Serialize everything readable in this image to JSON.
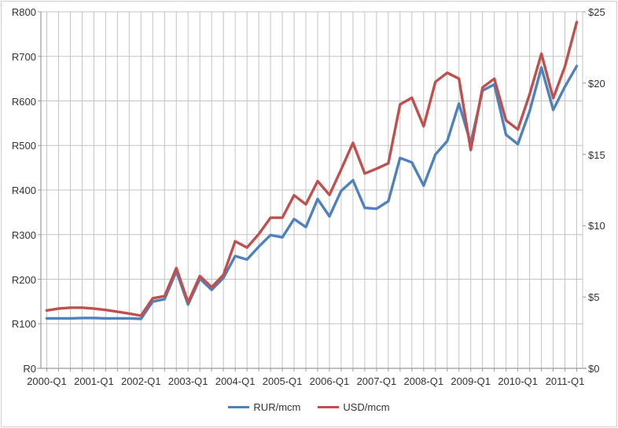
{
  "chart_data": {
    "type": "line",
    "title": "",
    "x": [
      "2000-Q1",
      "2000-Q2",
      "2000-Q3",
      "2000-Q4",
      "2001-Q1",
      "2001-Q2",
      "2001-Q3",
      "2001-Q4",
      "2002-Q1",
      "2002-Q2",
      "2002-Q3",
      "2002-Q4",
      "2003-Q1",
      "2003-Q2",
      "2003-Q3",
      "2003-Q4",
      "2004-Q1",
      "2004-Q2",
      "2004-Q3",
      "2004-Q4",
      "2005-Q1",
      "2005-Q2",
      "2005-Q3",
      "2005-Q4",
      "2006-Q1",
      "2006-Q2",
      "2006-Q3",
      "2006-Q4",
      "2007-Q1",
      "2007-Q2",
      "2007-Q3",
      "2007-Q4",
      "2008-Q1",
      "2008-Q2",
      "2008-Q3",
      "2008-Q4",
      "2009-Q1",
      "2009-Q2",
      "2009-Q3",
      "2009-Q4",
      "2010-Q1",
      "2010-Q2",
      "2010-Q3",
      "2010-Q4",
      "2011-Q1",
      "2011-Q2"
    ],
    "x_axis_labels": [
      "2000-Q1",
      "2001-Q1",
      "2002-Q1",
      "2003-Q1",
      "2004-Q1",
      "2005-Q1",
      "2006-Q1",
      "2007-Q1",
      "2008-Q1",
      "2009-Q1",
      "2010-Q1",
      "2011-Q1"
    ],
    "series": [
      {
        "name": "RUR/mcm",
        "color": "#4F81BD",
        "axis": "left",
        "values": [
          112,
          112,
          112,
          113,
          113,
          112,
          112,
          112,
          111,
          150,
          155,
          218,
          143,
          201,
          176,
          203,
          252,
          244,
          273,
          299,
          294,
          335,
          317,
          380,
          341,
          398,
          422,
          360,
          358,
          375,
          472,
          462,
          410,
          480,
          510,
          594,
          505,
          623,
          637,
          524,
          503,
          577,
          675,
          580,
          632,
          678
        ]
      },
      {
        "name": "USD/mcm",
        "color": "#C0504D",
        "axis": "right",
        "values": [
          4.06,
          4.19,
          4.25,
          4.25,
          4.19,
          4.09,
          3.97,
          3.84,
          3.69,
          4.91,
          5.06,
          7.03,
          4.63,
          6.47,
          5.69,
          6.56,
          8.91,
          8.47,
          9.41,
          10.56,
          10.56,
          12.13,
          11.5,
          13.13,
          12.16,
          13.94,
          15.81,
          13.66,
          14.0,
          14.38,
          18.5,
          18.97,
          16.97,
          20.09,
          20.72,
          20.31,
          15.31,
          19.69,
          20.31,
          17.38,
          16.75,
          19.22,
          22.06,
          18.94,
          21.16,
          24.28
        ]
      }
    ],
    "left_axis": {
      "prefix": "R",
      "min": 0,
      "max": 800,
      "step": 100,
      "tick_labels": [
        "R0",
        "R100",
        "R200",
        "R300",
        "R400",
        "R500",
        "R600",
        "R700",
        "R800"
      ]
    },
    "right_axis": {
      "prefix": "$",
      "min": 0,
      "max": 25,
      "step": 5,
      "tick_labels": [
        "$0",
        "$5",
        "$10",
        "$15",
        "$20",
        "$25"
      ]
    },
    "grid": true,
    "legend_position": "bottom"
  },
  "legend": {
    "items": [
      {
        "label": "RUR/mcm",
        "color": "#4F81BD"
      },
      {
        "label": "USD/mcm",
        "color": "#C0504D"
      }
    ]
  },
  "colors": {
    "background": "#ffffff",
    "gridline": "#c3c3c3",
    "axis_line": "#9a9a9a",
    "label_text": "#333333",
    "outer_border": "#cfcfcf",
    "series_rur": "#4F81BD",
    "series_usd": "#C0504D"
  }
}
